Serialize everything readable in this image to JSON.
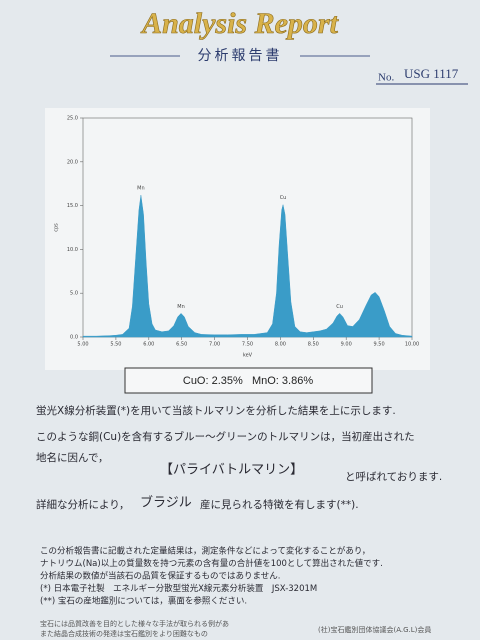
{
  "header": {
    "title": "Analysis Report",
    "subtitle": "分析報告書",
    "number_label": "No.",
    "number": "USG 1117"
  },
  "chart_data": {
    "type": "area",
    "color": "#3a9cc8",
    "xlabel": "keV",
    "ylabel": "cps",
    "x": [
      5.0,
      5.2,
      5.4,
      5.5,
      5.6,
      5.7,
      5.75,
      5.8,
      5.85,
      5.88,
      5.92,
      5.96,
      6.0,
      6.05,
      6.1,
      6.2,
      6.3,
      6.38,
      6.44,
      6.49,
      6.54,
      6.6,
      6.7,
      6.8,
      7.0,
      7.2,
      7.4,
      7.6,
      7.8,
      7.88,
      7.94,
      7.98,
      8.02,
      8.04,
      8.07,
      8.11,
      8.16,
      8.22,
      8.3,
      8.4,
      8.5,
      8.6,
      8.7,
      8.8,
      8.86,
      8.9,
      8.95,
      9.02,
      9.1,
      9.2,
      9.3,
      9.38,
      9.44,
      9.5,
      9.58,
      9.66,
      9.75,
      9.85,
      10.0
    ],
    "values": [
      0.1,
      0.1,
      0.15,
      0.2,
      0.3,
      1.0,
      3.5,
      9.0,
      14.5,
      16.2,
      14.0,
      8.5,
      3.8,
      1.5,
      0.8,
      0.6,
      0.7,
      1.3,
      2.3,
      2.7,
      2.3,
      1.2,
      0.5,
      0.3,
      0.25,
      0.25,
      0.3,
      0.3,
      0.5,
      1.5,
      5.0,
      10.5,
      14.5,
      15.1,
      14.0,
      9.5,
      4.0,
      1.2,
      0.6,
      0.5,
      0.6,
      0.7,
      0.9,
      1.6,
      2.4,
      2.7,
      2.3,
      1.3,
      1.2,
      2.0,
      3.6,
      4.8,
      5.1,
      4.6,
      3.0,
      1.2,
      0.4,
      0.2,
      0.1
    ],
    "xlim": [
      5,
      10
    ],
    "ylim": [
      0,
      25
    ],
    "xticks": [
      {
        "value": 5,
        "label": "5.00"
      },
      {
        "value": 5.5,
        "label": "5.50"
      },
      {
        "value": 6,
        "label": "6.00"
      },
      {
        "value": 6.5,
        "label": "6.50"
      },
      {
        "value": 7,
        "label": "7.00"
      },
      {
        "value": 7.5,
        "label": "7.50"
      },
      {
        "value": 8,
        "label": "8.00"
      },
      {
        "value": 8.5,
        "label": "8.50"
      },
      {
        "value": 9,
        "label": "9.00"
      },
      {
        "value": 9.5,
        "label": "9.50"
      },
      {
        "value": 10,
        "label": "10.00"
      }
    ],
    "yticks": [
      {
        "value": 0,
        "label": "0.0"
      },
      {
        "value": 5,
        "label": "5.0"
      },
      {
        "value": 10,
        "label": "10.0"
      },
      {
        "value": 15,
        "label": "15.0"
      },
      {
        "value": 20,
        "label": "20.0"
      },
      {
        "value": 25,
        "label": "25.0"
      }
    ],
    "annotations": [
      {
        "text": "Mn",
        "x": 5.88,
        "y": 16.2
      },
      {
        "text": "Mn",
        "x": 6.49,
        "y": 2.7
      },
      {
        "text": "Cu",
        "x": 8.04,
        "y": 15.1
      },
      {
        "text": "Cu",
        "x": 8.9,
        "y": 2.7
      }
    ]
  },
  "result": "CuO: 2.35%   MnO: 3.86%",
  "body": {
    "line1": "蛍光X線分析装置(*)を用いて当該トルマリンを分析した結果を上に示します.",
    "line2": "このような銅(Cu)を含有するブルー～グリーンのトルマリンは，当初産出された",
    "line3": "地名に因んで，",
    "name": "【パライバトルマリン】",
    "called": "と呼ばれております.",
    "detail_a": "詳細な分析により，",
    "origin": "ブラジル",
    "detail_b": "産に見られる特徴を有します(**)."
  },
  "notes": [
    "この分析報告書に記載された定量結果は，測定条件などによって変化することがあり，",
    "ナトリウム(Na)以上の質量数を持つ元素の含有量の合計値を100として算出された値です.",
    "分析結果の数値が当該石の品質を保証するものではありません.",
    "(*) 日本電子社製　エネルギー分散型蛍光X線元素分析装置　JSX-3201M",
    "(**) 宝石の産地鑑別については，裏面を参照ください."
  ],
  "footer": {
    "line1": "宝石には品質改善を目的とした様々な手法が取られる例があ",
    "line2": "また結晶合成技術の発達は宝石鑑別をより困難なもの",
    "member": "(社)宝石鑑別団体協議会(A.G.L)会員"
  }
}
